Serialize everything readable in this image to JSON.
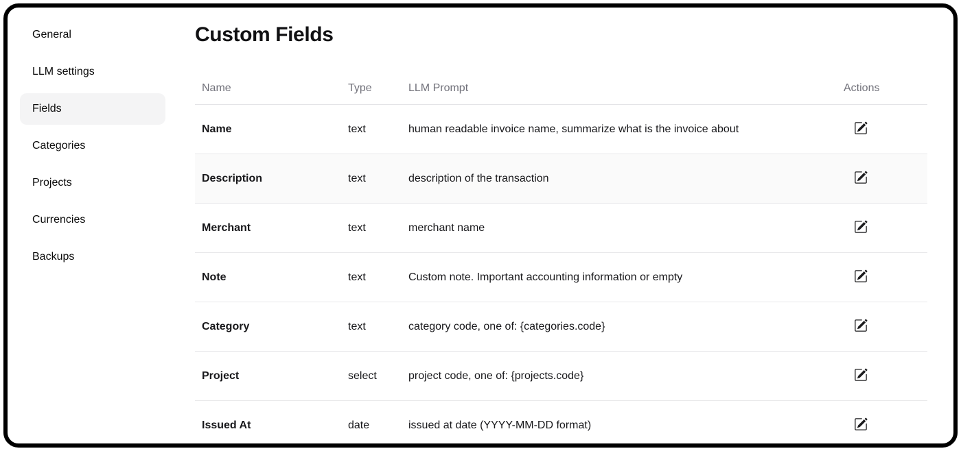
{
  "sidebar": {
    "items": [
      {
        "label": "General",
        "active": false
      },
      {
        "label": "LLM settings",
        "active": false
      },
      {
        "label": "Fields",
        "active": true
      },
      {
        "label": "Categories",
        "active": false
      },
      {
        "label": "Projects",
        "active": false
      },
      {
        "label": "Currencies",
        "active": false
      },
      {
        "label": "Backups",
        "active": false
      }
    ]
  },
  "main": {
    "title": "Custom Fields",
    "table": {
      "columns": [
        "Name",
        "Type",
        "LLM Prompt",
        "Actions"
      ],
      "rows": [
        {
          "name": "Name",
          "type": "text",
          "prompt": "human readable invoice name, summarize what is the invoice about",
          "highlighted": false
        },
        {
          "name": "Description",
          "type": "text",
          "prompt": "description of the transaction",
          "highlighted": true
        },
        {
          "name": "Merchant",
          "type": "text",
          "prompt": "merchant name",
          "highlighted": false
        },
        {
          "name": "Note",
          "type": "text",
          "prompt": "Custom note. Important accounting information or empty",
          "highlighted": false
        },
        {
          "name": "Category",
          "type": "text",
          "prompt": "category code, one of: {categories.code}",
          "highlighted": false
        },
        {
          "name": "Project",
          "type": "select",
          "prompt": "project code, one of: {projects.code}",
          "highlighted": false
        },
        {
          "name": "Issued At",
          "type": "date",
          "prompt": "issued at date (YYYY-MM-DD format)",
          "highlighted": false
        }
      ],
      "edit_icon": "pencil-square-icon"
    }
  },
  "colors": {
    "window_border": "#000000",
    "active_item_bg": "#f4f4f5",
    "header_text": "#71717a",
    "divider": "#e4e4e7",
    "highlight_row_bg": "#fafafa",
    "body_text": "#18181b"
  }
}
